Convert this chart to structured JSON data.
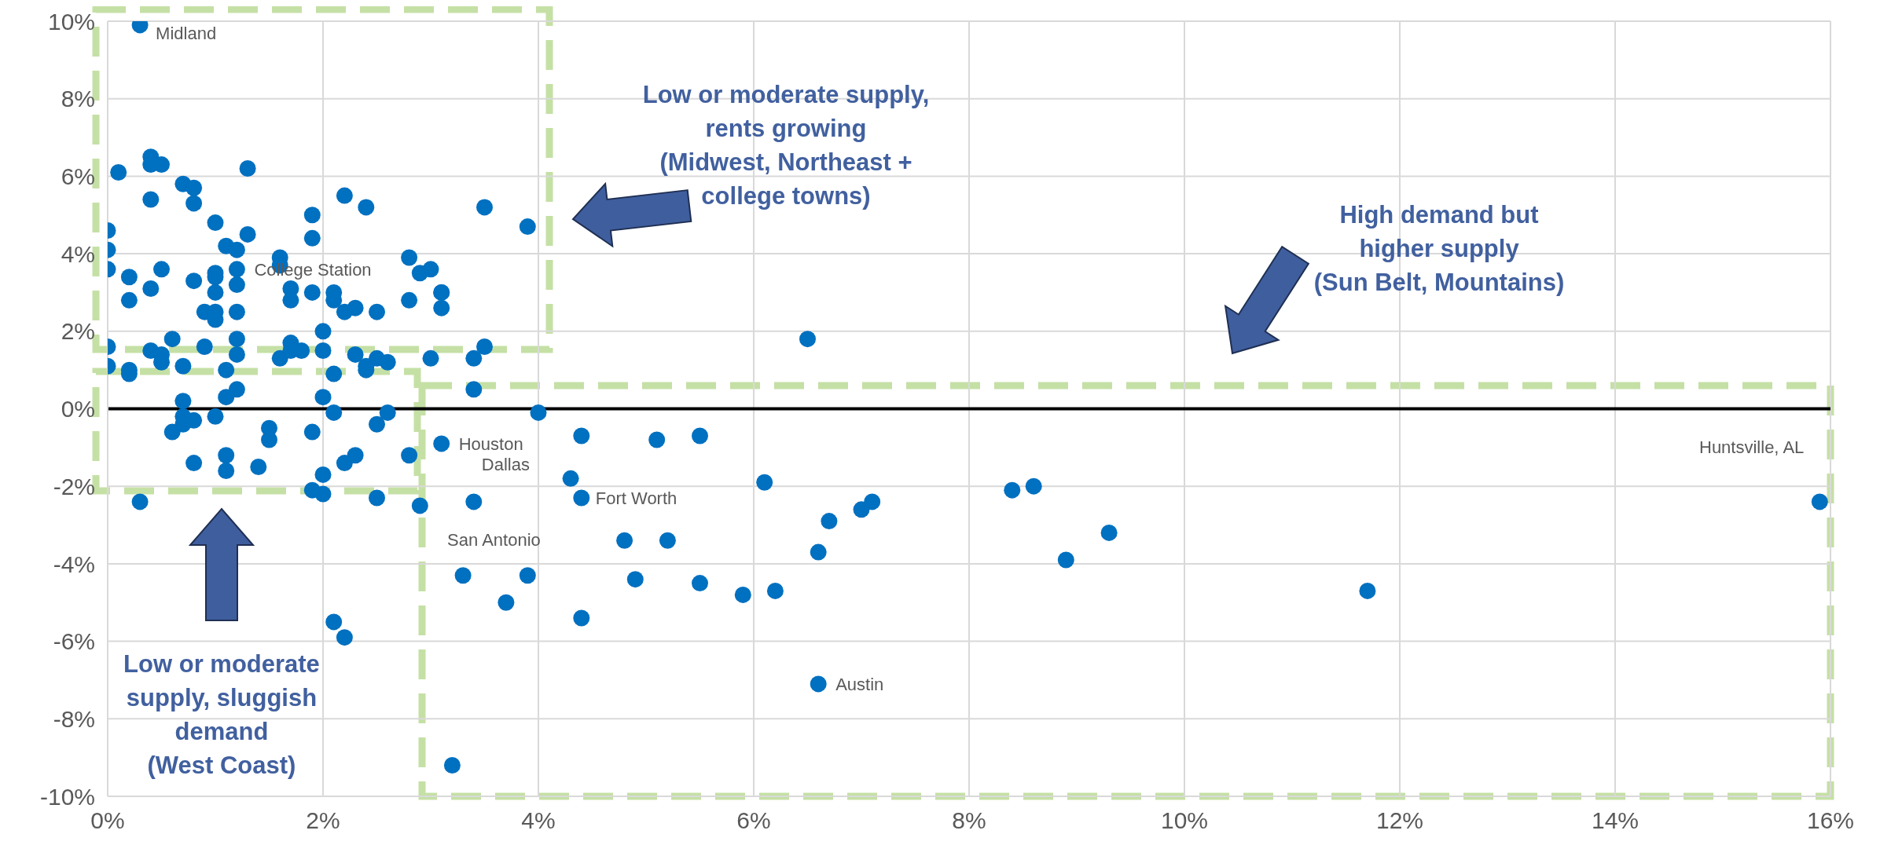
{
  "chart_data": {
    "type": "scatter",
    "x": [
      0.3,
      0.1,
      0.4,
      0.4,
      0.5,
      1.3,
      0.7,
      0.8,
      0.4,
      0.8,
      2.2,
      2.4,
      3.5,
      3.9,
      1.0,
      1.9,
      1.9,
      0.0,
      0.0,
      0.0,
      1.1,
      1.2,
      1.3,
      1.6,
      1.6,
      2.8,
      2.9,
      3.0,
      0.2,
      0.5,
      0.4,
      0.2,
      0.8,
      1.0,
      1.0,
      1.0,
      1.2,
      1.2,
      1.7,
      1.7,
      1.9,
      2.1,
      2.1,
      3.1,
      3.1,
      3.1,
      2.8,
      0.9,
      1.0,
      1.0,
      1.2,
      2.2,
      2.3,
      2.5,
      2.0,
      0.6,
      1.2,
      0.0,
      0.4,
      0.5,
      0.5,
      0.9,
      0.7,
      0.0,
      0.2,
      0.2,
      1.1,
      1.2,
      1.6,
      1.7,
      1.7,
      1.8,
      2.0,
      2.1,
      2.3,
      2.4,
      2.4,
      2.5,
      2.6,
      3.0,
      3.4,
      3.5,
      3.4,
      1.1,
      1.2,
      2.0,
      0.7,
      0.7,
      0.7,
      0.8,
      0.6,
      1.0,
      1.5,
      1.5,
      1.9,
      2.1,
      2.5,
      2.6,
      4.0,
      3.1,
      4.4,
      0.8,
      1.1,
      1.1,
      1.4,
      2.2,
      2.3,
      2.8,
      2.0,
      1.9,
      2.0,
      2.5,
      2.9,
      0.3,
      3.4,
      4.3,
      4.4,
      3.3,
      3.9,
      3.7,
      4.4,
      2.1,
      2.2,
      3.2,
      6.5,
      5.1,
      5.5,
      6.1,
      4.8,
      5.2,
      4.9,
      5.5,
      5.9,
      6.2,
      6.6,
      6.7,
      7.0,
      7.1,
      6.6,
      8.4,
      8.6,
      8.9,
      9.3,
      11.7,
      15.9
    ],
    "values": [
      9.9,
      6.1,
      6.5,
      6.3,
      6.3,
      6.2,
      5.8,
      5.7,
      5.4,
      5.3,
      5.5,
      5.2,
      5.2,
      4.7,
      4.8,
      5.0,
      4.4,
      4.6,
      4.1,
      3.6,
      4.2,
      4.1,
      4.5,
      3.9,
      3.7,
      3.9,
      3.5,
      3.6,
      3.4,
      3.6,
      3.1,
      2.8,
      3.3,
      3.5,
      3.4,
      3.0,
      3.6,
      3.2,
      3.1,
      2.8,
      3.0,
      3.0,
      2.8,
      3.0,
      3.0,
      2.6,
      2.8,
      2.5,
      2.5,
      2.3,
      2.5,
      2.5,
      2.6,
      2.5,
      2.0,
      1.8,
      1.8,
      1.6,
      1.5,
      1.4,
      1.2,
      1.6,
      1.1,
      1.1,
      1.0,
      0.9,
      1.0,
      1.4,
      1.3,
      1.7,
      1.5,
      1.5,
      1.5,
      0.9,
      1.4,
      1.1,
      1.0,
      1.3,
      1.2,
      1.3,
      1.3,
      1.6,
      0.5,
      0.3,
      0.5,
      0.3,
      0.2,
      -0.2,
      -0.4,
      -0.3,
      -0.6,
      -0.2,
      -0.5,
      -0.8,
      -0.6,
      -0.1,
      -0.4,
      -0.1,
      -0.1,
      -0.9,
      -0.7,
      -1.4,
      -1.2,
      -1.6,
      -1.5,
      -1.4,
      -1.2,
      -1.2,
      -1.7,
      -2.1,
      -2.2,
      -2.3,
      -2.5,
      -2.4,
      -2.4,
      -1.8,
      -2.3,
      -4.3,
      -4.3,
      -5.0,
      -5.4,
      -5.5,
      -5.9,
      -9.2,
      1.8,
      -0.8,
      -0.7,
      -1.9,
      -3.4,
      -3.4,
      -4.4,
      -4.5,
      -4.8,
      -4.7,
      -3.7,
      -2.9,
      -2.6,
      -2.4,
      -7.1,
      -2.1,
      -2.0,
      -3.9,
      -3.2,
      -4.7,
      -2.4
    ],
    "color": "#0070c0",
    "marker": "circle",
    "grid": true,
    "xlim": [
      0,
      16
    ],
    "ylim": [
      -10,
      10
    ],
    "xticks": [
      {
        "value": 0,
        "label": "0%"
      },
      {
        "value": 2,
        "label": "2%"
      },
      {
        "value": 4,
        "label": "4%"
      },
      {
        "value": 6,
        "label": "6%"
      },
      {
        "value": 8,
        "label": "8%"
      },
      {
        "value": 10,
        "label": "10%"
      },
      {
        "value": 12,
        "label": "12%"
      },
      {
        "value": 14,
        "label": "14%"
      },
      {
        "value": 16,
        "label": "16%"
      }
    ],
    "yticks": [
      {
        "value": -10,
        "label": "-10%"
      },
      {
        "value": -8,
        "label": "-8%"
      },
      {
        "value": -6,
        "label": "-6%"
      },
      {
        "value": -4,
        "label": "-4%"
      },
      {
        "value": -2,
        "label": "-2%"
      },
      {
        "value": 0,
        "label": "0%"
      },
      {
        "value": 2,
        "label": "2%"
      },
      {
        "value": 4,
        "label": "4%"
      },
      {
        "value": 6,
        "label": "6%"
      },
      {
        "value": 8,
        "label": "8%"
      },
      {
        "value": 10,
        "label": "10%"
      }
    ],
    "ref_lines": [
      {
        "axis": "y",
        "value": 0,
        "color": "#000000"
      }
    ],
    "annotations": [
      {
        "text": "Midland",
        "x": 0.3,
        "y": 9.9
      },
      {
        "text": "College Station",
        "x": 1.2,
        "y": 3.6
      },
      {
        "text": "Houston",
        "x": 3.1,
        "y": -0.9
      },
      {
        "text": "Dallas",
        "x": 3.4,
        "y": -2.4
      },
      {
        "text": "Fort Worth",
        "x": 4.4,
        "y": -2.3
      },
      {
        "text": "San Antonio",
        "x": 3.3,
        "y": -4.3
      },
      {
        "text": "Austin",
        "x": 6.6,
        "y": -7.1
      },
      {
        "text": "Huntsville, AL",
        "x": 15.9,
        "y": -2.4
      },
      "Low or moderate supply,\nrents growing\n(Midwest, Northeast +\ncollege towns)",
      "High demand but\nhigher supply\n(Sun Belt, Mountains)",
      "Low or moderate\nsupply, sluggish\ndemand\n(West Coast)"
    ]
  }
}
